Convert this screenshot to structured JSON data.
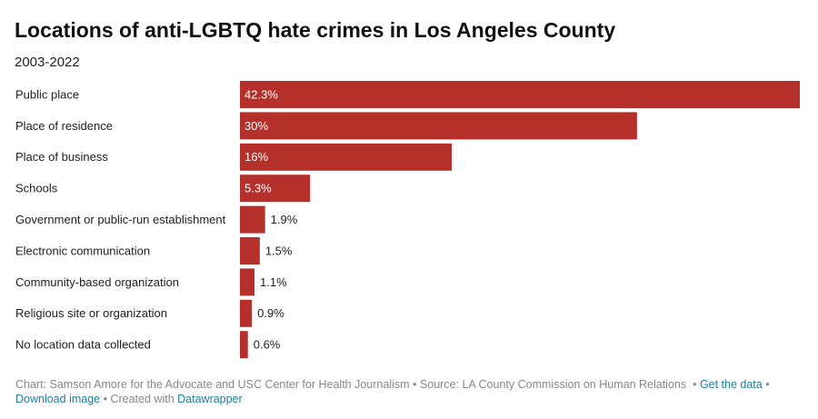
{
  "chart_data": {
    "type": "bar",
    "orientation": "horizontal",
    "title": "Locations of anti-LGBTQ hate crimes in Los Angeles County",
    "subtitle": "2003-2022",
    "categories": [
      "Public place",
      "Place of residence",
      "Place of business",
      "Schools",
      "Government or public-run establishment",
      "Electronic communication",
      "Community-based organization",
      "Religious site or organization",
      "No location data collected"
    ],
    "values": [
      42.3,
      30,
      16,
      5.3,
      1.9,
      1.5,
      1.1,
      0.9,
      0.6
    ],
    "value_labels": [
      "42.3%",
      "30%",
      "16%",
      "5.3%",
      "1.9%",
      "1.5%",
      "1.1%",
      "0.9%",
      "0.6%"
    ],
    "color": "#b5302a",
    "footer": {
      "credit": "Chart: Samson Amore for the Advocate and USC Center for Health Journalism",
      "source": "Source: LA County Commission on Human Relations",
      "separator": "•",
      "links": [
        "Get the data",
        "Download image"
      ],
      "created": "Created with",
      "tool": "Datawrapper"
    }
  }
}
